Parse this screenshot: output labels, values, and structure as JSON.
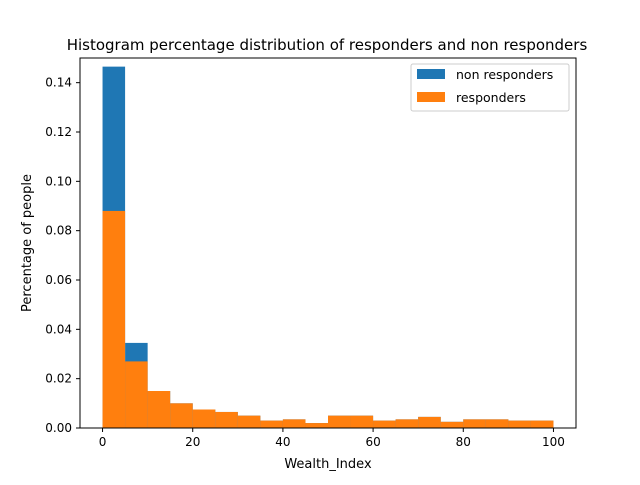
{
  "chart_data": {
    "type": "bar",
    "title": "Histogram percentage distribution of responders and non responders",
    "xlabel": "Wealth_Index",
    "ylabel": "Percentage of people",
    "xlim": [
      -5,
      105
    ],
    "ylim": [
      0,
      0.15
    ],
    "xticks": [
      0,
      20,
      40,
      60,
      80,
      100
    ],
    "yticks": [
      0.0,
      0.02,
      0.04,
      0.06,
      0.08,
      0.1,
      0.12,
      0.14
    ],
    "ytick_labels": [
      "0.00",
      "0.02",
      "0.04",
      "0.06",
      "0.08",
      "0.10",
      "0.12",
      "0.14"
    ],
    "bin_edges": [
      0,
      5,
      10,
      15,
      20,
      25,
      30,
      35,
      40,
      45,
      50,
      55,
      60,
      65,
      70,
      75,
      80,
      85,
      90,
      95,
      100
    ],
    "legend_position": "top-right",
    "grid": false,
    "series": [
      {
        "name": "non responders",
        "color": "#1f77b4",
        "values": [
          0.1465,
          0.0345,
          0.015,
          0.01,
          0.0075,
          0.0065,
          0.005,
          0.003,
          0.0035,
          0.002,
          0.005,
          0.005,
          0.003,
          0.0035,
          0.0045,
          0.0025,
          0.0035,
          0.0035,
          0.003,
          0.003
        ]
      },
      {
        "name": "responders",
        "color": "#ff7f0e",
        "values": [
          0.088,
          0.027,
          0.015,
          0.01,
          0.0075,
          0.0065,
          0.005,
          0.003,
          0.0035,
          0.002,
          0.005,
          0.005,
          0.003,
          0.0035,
          0.0045,
          0.0025,
          0.0035,
          0.0035,
          0.003,
          0.003
        ]
      }
    ]
  }
}
